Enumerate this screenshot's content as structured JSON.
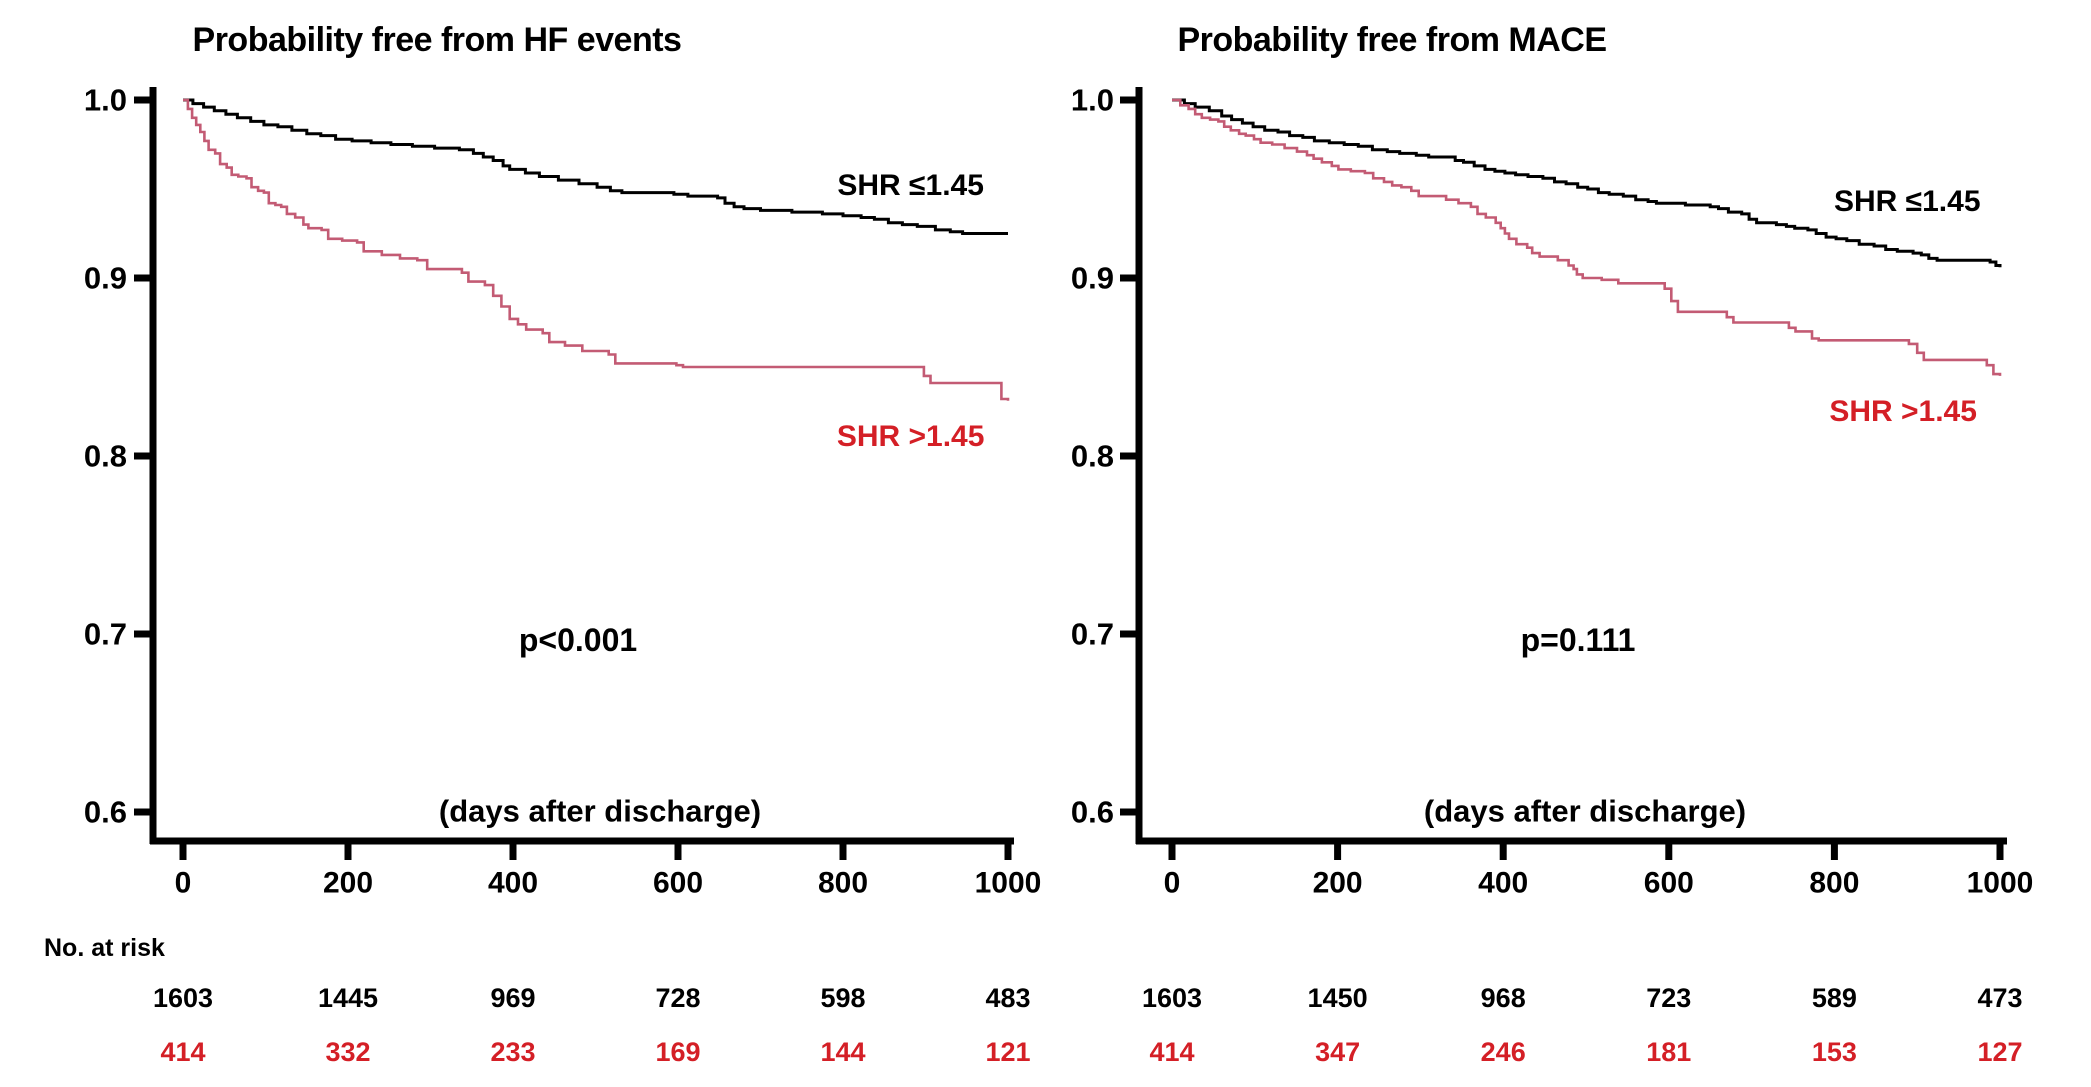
{
  "figure": {
    "background": "#ffffff",
    "colors": {
      "axis": "#000000",
      "black_series": "#000000",
      "red_series_line": "#c35b74",
      "red_series_text": "#d41f26"
    },
    "risk_table_header": "No. at risk"
  },
  "chart_data": [
    {
      "type": "line",
      "subtype": "kaplan-meier-step",
      "title": "Probability free from HF events",
      "x_axis_label": "(days after discharge)",
      "p_value": "p<0.001",
      "xlim": [
        0,
        1000
      ],
      "ylim": [
        0.58,
        1.005
      ],
      "x_ticks": [
        0,
        200,
        400,
        600,
        800,
        1000
      ],
      "y_ticks": [
        1.0,
        0.9,
        0.8,
        0.7,
        0.6
      ],
      "grid": false,
      "legend_position": "inline-labels",
      "series": [
        {
          "name": "SHR ≤1.45",
          "color_key": "black_series",
          "label_at": {
            "day": 882,
            "prob": 0.952
          },
          "points": [
            [
              0,
              1.0
            ],
            [
              12,
              0.998
            ],
            [
              25,
              0.996
            ],
            [
              38,
              0.994
            ],
            [
              52,
              0.992
            ],
            [
              66,
              0.99
            ],
            [
              82,
              0.988
            ],
            [
              98,
              0.986
            ],
            [
              115,
              0.985
            ],
            [
              132,
              0.983
            ],
            [
              150,
              0.981
            ],
            [
              167,
              0.98
            ],
            [
              185,
              0.978
            ],
            [
              205,
              0.977
            ],
            [
              228,
              0.976
            ],
            [
              252,
              0.975
            ],
            [
              278,
              0.974
            ],
            [
              305,
              0.973
            ],
            [
              335,
              0.972
            ],
            [
              352,
              0.97
            ],
            [
              364,
              0.968
            ],
            [
              376,
              0.966
            ],
            [
              388,
              0.963
            ],
            [
              396,
              0.961
            ],
            [
              415,
              0.959
            ],
            [
              432,
              0.957
            ],
            [
              455,
              0.955
            ],
            [
              480,
              0.953
            ],
            [
              502,
              0.951
            ],
            [
              518,
              0.949
            ],
            [
              532,
              0.948
            ],
            [
              595,
              0.947
            ],
            [
              612,
              0.946
            ],
            [
              648,
              0.945
            ],
            [
              657,
              0.942
            ],
            [
              668,
              0.94
            ],
            [
              680,
              0.939
            ],
            [
              700,
              0.938
            ],
            [
              738,
              0.937
            ],
            [
              775,
              0.936
            ],
            [
              800,
              0.935
            ],
            [
              822,
              0.934
            ],
            [
              838,
              0.933
            ],
            [
              855,
              0.931
            ],
            [
              872,
              0.93
            ],
            [
              890,
              0.929
            ],
            [
              912,
              0.927
            ],
            [
              930,
              0.926
            ],
            [
              945,
              0.925
            ],
            [
              1000,
              0.925
            ]
          ]
        },
        {
          "name": "SHR >1.45",
          "color_key": "red_series_line",
          "label_at": {
            "day": 882,
            "prob": 0.811
          },
          "points": [
            [
              0,
              1.0
            ],
            [
              6,
              0.995
            ],
            [
              11,
              0.99
            ],
            [
              16,
              0.986
            ],
            [
              21,
              0.982
            ],
            [
              26,
              0.977
            ],
            [
              31,
              0.972
            ],
            [
              39,
              0.97
            ],
            [
              45,
              0.964
            ],
            [
              53,
              0.962
            ],
            [
              59,
              0.958
            ],
            [
              67,
              0.957
            ],
            [
              77,
              0.956
            ],
            [
              83,
              0.951
            ],
            [
              91,
              0.949
            ],
            [
              98,
              0.948
            ],
            [
              104,
              0.942
            ],
            [
              112,
              0.941
            ],
            [
              119,
              0.94
            ],
            [
              126,
              0.936
            ],
            [
              136,
              0.934
            ],
            [
              146,
              0.93
            ],
            [
              152,
              0.928
            ],
            [
              168,
              0.927
            ],
            [
              176,
              0.922
            ],
            [
              193,
              0.921
            ],
            [
              211,
              0.92
            ],
            [
              219,
              0.915
            ],
            [
              241,
              0.913
            ],
            [
              263,
              0.911
            ],
            [
              284,
              0.91
            ],
            [
              296,
              0.905
            ],
            [
              338,
              0.903
            ],
            [
              346,
              0.898
            ],
            [
              366,
              0.896
            ],
            [
              376,
              0.89
            ],
            [
              386,
              0.884
            ],
            [
              396,
              0.877
            ],
            [
              406,
              0.874
            ],
            [
              416,
              0.871
            ],
            [
              436,
              0.869
            ],
            [
              444,
              0.864
            ],
            [
              463,
              0.862
            ],
            [
              484,
              0.859
            ],
            [
              516,
              0.857
            ],
            [
              524,
              0.852
            ],
            [
              598,
              0.851
            ],
            [
              606,
              0.85
            ],
            [
              890,
              0.85
            ],
            [
              898,
              0.845
            ],
            [
              906,
              0.841
            ],
            [
              984,
              0.841
            ],
            [
              992,
              0.832
            ],
            [
              1000,
              0.831
            ]
          ]
        }
      ],
      "at_risk": [
        {
          "group": "SHR ≤1.45",
          "color_key": "black_series",
          "values": [
            1603,
            1445,
            969,
            728,
            598,
            483
          ]
        },
        {
          "group": "SHR >1.45",
          "color_key": "red_series_text",
          "values": [
            414,
            332,
            233,
            169,
            144,
            121
          ]
        }
      ]
    },
    {
      "type": "line",
      "subtype": "kaplan-meier-step",
      "title": "Probability free from MACE",
      "x_axis_label": "(days after discharge)",
      "p_value": "p=0.111",
      "xlim": [
        0,
        1000
      ],
      "ylim": [
        0.58,
        1.005
      ],
      "x_ticks": [
        0,
        200,
        400,
        600,
        800,
        1000
      ],
      "y_ticks": [
        1.0,
        0.9,
        0.8,
        0.7,
        0.6
      ],
      "grid": false,
      "legend_position": "inline-labels",
      "series": [
        {
          "name": "SHR ≤1.45",
          "color_key": "black_series",
          "label_at": {
            "day": 888,
            "prob": 0.943
          },
          "points": [
            [
              0,
              1.0
            ],
            [
              15,
              0.998
            ],
            [
              28,
              0.996
            ],
            [
              45,
              0.994
            ],
            [
              60,
              0.991
            ],
            [
              72,
              0.989
            ],
            [
              85,
              0.987
            ],
            [
              98,
              0.985
            ],
            [
              112,
              0.983
            ],
            [
              128,
              0.982
            ],
            [
              142,
              0.98
            ],
            [
              158,
              0.979
            ],
            [
              172,
              0.977
            ],
            [
              190,
              0.976
            ],
            [
              208,
              0.975
            ],
            [
              225,
              0.974
            ],
            [
              242,
              0.972
            ],
            [
              260,
              0.971
            ],
            [
              275,
              0.97
            ],
            [
              295,
              0.969
            ],
            [
              310,
              0.968
            ],
            [
              342,
              0.966
            ],
            [
              352,
              0.965
            ],
            [
              365,
              0.963
            ],
            [
              378,
              0.961
            ],
            [
              390,
              0.96
            ],
            [
              402,
              0.959
            ],
            [
              415,
              0.958
            ],
            [
              430,
              0.957
            ],
            [
              448,
              0.956
            ],
            [
              462,
              0.954
            ],
            [
              476,
              0.953
            ],
            [
              490,
              0.951
            ],
            [
              502,
              0.95
            ],
            [
              515,
              0.948
            ],
            [
              528,
              0.947
            ],
            [
              545,
              0.946
            ],
            [
              560,
              0.944
            ],
            [
              575,
              0.943
            ],
            [
              585,
              0.942
            ],
            [
              620,
              0.941
            ],
            [
              650,
              0.94
            ],
            [
              660,
              0.939
            ],
            [
              672,
              0.937
            ],
            [
              688,
              0.936
            ],
            [
              697,
              0.933
            ],
            [
              706,
              0.931
            ],
            [
              730,
              0.93
            ],
            [
              742,
              0.929
            ],
            [
              752,
              0.928
            ],
            [
              768,
              0.927
            ],
            [
              778,
              0.925
            ],
            [
              790,
              0.923
            ],
            [
              802,
              0.922
            ],
            [
              815,
              0.921
            ],
            [
              830,
              0.919
            ],
            [
              848,
              0.918
            ],
            [
              862,
              0.916
            ],
            [
              876,
              0.915
            ],
            [
              895,
              0.914
            ],
            [
              905,
              0.913
            ],
            [
              914,
              0.911
            ],
            [
              924,
              0.91
            ],
            [
              988,
              0.909
            ],
            [
              995,
              0.907
            ],
            [
              1000,
              0.906
            ]
          ]
        },
        {
          "name": "SHR >1.45",
          "color_key": "red_series_line",
          "label_at": {
            "day": 883,
            "prob": 0.825
          },
          "points": [
            [
              0,
              1.0
            ],
            [
              10,
              0.997
            ],
            [
              20,
              0.995
            ],
            [
              28,
              0.992
            ],
            [
              36,
              0.99
            ],
            [
              46,
              0.989
            ],
            [
              56,
              0.988
            ],
            [
              63,
              0.985
            ],
            [
              71,
              0.983
            ],
            [
              81,
              0.981
            ],
            [
              89,
              0.98
            ],
            [
              99,
              0.978
            ],
            [
              107,
              0.976
            ],
            [
              121,
              0.975
            ],
            [
              136,
              0.973
            ],
            [
              151,
              0.971
            ],
            [
              163,
              0.969
            ],
            [
              171,
              0.967
            ],
            [
              181,
              0.965
            ],
            [
              193,
              0.963
            ],
            [
              201,
              0.961
            ],
            [
              216,
              0.96
            ],
            [
              233,
              0.959
            ],
            [
              243,
              0.956
            ],
            [
              256,
              0.954
            ],
            [
              266,
              0.952
            ],
            [
              277,
              0.951
            ],
            [
              289,
              0.949
            ],
            [
              298,
              0.946
            ],
            [
              331,
              0.944
            ],
            [
              346,
              0.942
            ],
            [
              361,
              0.94
            ],
            [
              369,
              0.936
            ],
            [
              379,
              0.934
            ],
            [
              391,
              0.931
            ],
            [
              397,
              0.928
            ],
            [
              402,
              0.925
            ],
            [
              407,
              0.922
            ],
            [
              416,
              0.919
            ],
            [
              429,
              0.917
            ],
            [
              435,
              0.914
            ],
            [
              444,
              0.912
            ],
            [
              466,
              0.91
            ],
            [
              479,
              0.907
            ],
            [
              485,
              0.905
            ],
            [
              489,
              0.902
            ],
            [
              496,
              0.9
            ],
            [
              519,
              0.899
            ],
            [
              539,
              0.897
            ],
            [
              595,
              0.894
            ],
            [
              603,
              0.887
            ],
            [
              611,
              0.881
            ],
            [
              670,
              0.878
            ],
            [
              678,
              0.875
            ],
            [
              745,
              0.872
            ],
            [
              753,
              0.87
            ],
            [
              773,
              0.866
            ],
            [
              781,
              0.865
            ],
            [
              890,
              0.863
            ],
            [
              900,
              0.858
            ],
            [
              908,
              0.854
            ],
            [
              984,
              0.851
            ],
            [
              992,
              0.846
            ],
            [
              1000,
              0.845
            ]
          ]
        }
      ],
      "at_risk": [
        {
          "group": "SHR ≤1.45",
          "color_key": "black_series",
          "values": [
            1603,
            1450,
            968,
            723,
            589,
            473
          ]
        },
        {
          "group": "SHR >1.45",
          "color_key": "red_series_text",
          "values": [
            414,
            347,
            246,
            181,
            153,
            127
          ]
        }
      ]
    }
  ]
}
